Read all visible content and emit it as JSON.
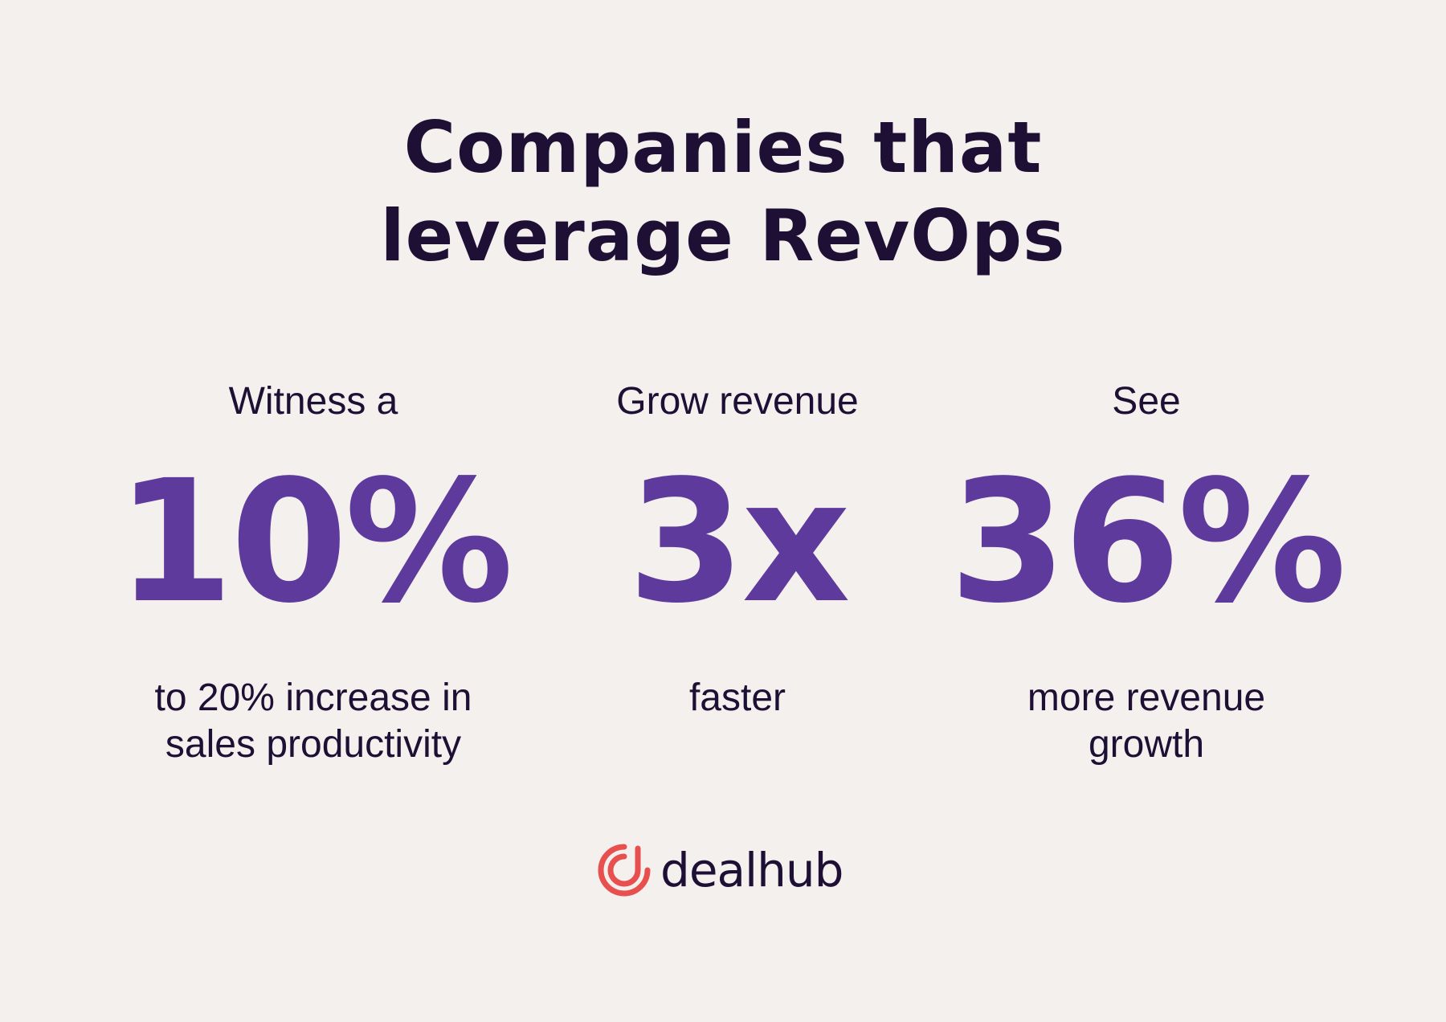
{
  "header": {
    "title_lines": [
      "Companies that",
      "leverage RevOps"
    ]
  },
  "stats": [
    {
      "lead": "Witness a",
      "figure": "10%",
      "caption_lines": [
        "to 20% increase in",
        "sales productivity"
      ]
    },
    {
      "lead": "Grow revenue",
      "figure": "3x",
      "caption_lines": [
        "faster"
      ]
    },
    {
      "lead": "See",
      "figure": "36%",
      "caption_lines": [
        "more revenue",
        "growth"
      ]
    }
  ],
  "footer": {
    "logo_text": "dealhub"
  }
}
